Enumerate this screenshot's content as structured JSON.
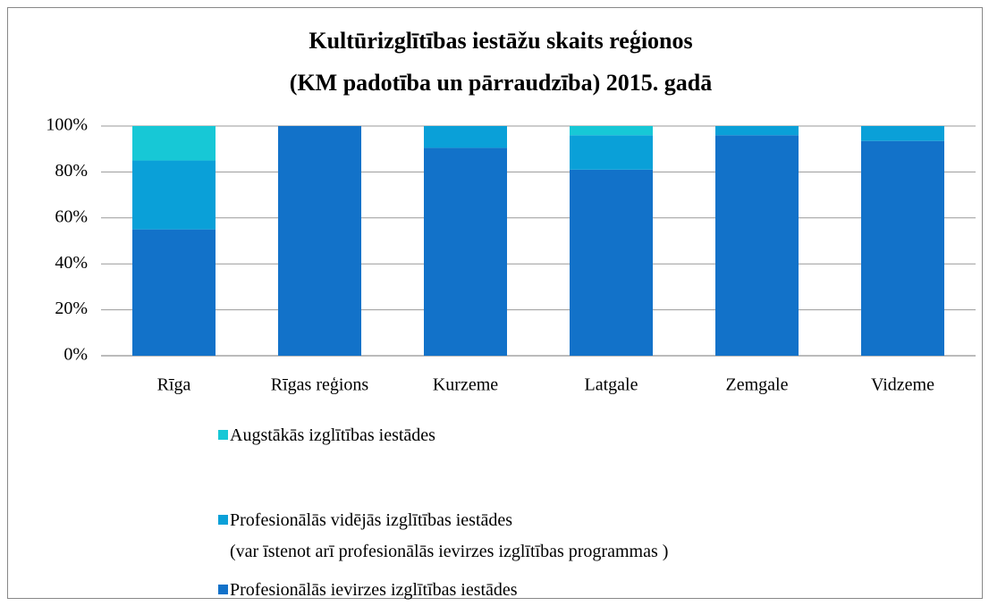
{
  "chart_data": {
    "type": "stacked-bar",
    "title": "Kultūrizglītības iestāžu skaits reģionos",
    "subtitle": "(KM padotība un pārraudzība) 2015. gadā",
    "categories": [
      "Rīga",
      "Rīgas reģions",
      "Kurzeme",
      "Latgale",
      "Zemgale",
      "Vidzeme"
    ],
    "series": [
      {
        "name": "Profesionālās ievirzes izglītības iestādes",
        "color": "#1272c9",
        "values": [
          55,
          100,
          90.5,
          81,
          96,
          93.5
        ]
      },
      {
        "name": "Profesionālās  vidējās izglītības iestādes\n(var īstenot arī profesionālās ievirzes izglītības programmas )",
        "color": "#0aa0d8",
        "values": [
          30,
          0,
          9.5,
          15,
          4,
          6.5
        ]
      },
      {
        "name": "Augstākās izglītības iestādes",
        "color": "#17c8d6",
        "values": [
          15,
          0,
          0,
          4,
          0,
          0
        ]
      }
    ],
    "ylim": [
      0,
      100
    ],
    "yticks": [
      {
        "value": 0,
        "label": "0%"
      },
      {
        "value": 20,
        "label": "20%"
      },
      {
        "value": 40,
        "label": "40%"
      },
      {
        "value": 60,
        "label": "60%"
      },
      {
        "value": 80,
        "label": "80%"
      },
      {
        "value": 100,
        "label": "100%"
      }
    ],
    "grid": true
  }
}
